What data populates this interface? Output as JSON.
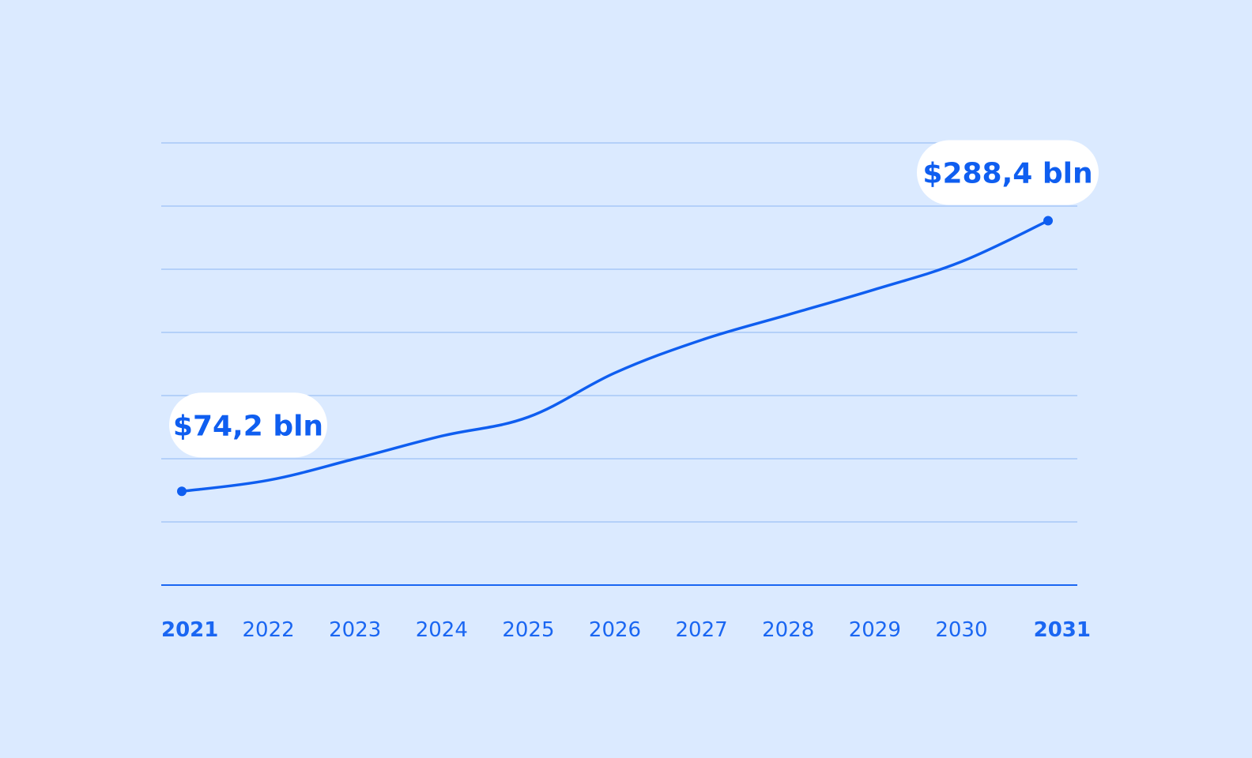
{
  "colors": {
    "background": "#dbeaff",
    "line": "#0f5ef0",
    "grid": "#a8c8f7",
    "axis": "#1a66f2",
    "callout_bg": "#ffffff"
  },
  "chart_data": {
    "type": "line",
    "title": "",
    "xlabel": "",
    "ylabel": "",
    "grid": true,
    "legend": "none",
    "categories": [
      "2021",
      "2022",
      "2023",
      "2024",
      "2025",
      "2026",
      "2027",
      "2028",
      "2029",
      "2030",
      "2031"
    ],
    "bold_ticks": [
      "2021",
      "2031"
    ],
    "ylim": [
      0,
      350
    ],
    "series": [
      {
        "values": [
          74.2,
          83,
          100,
          118,
          133,
          168,
          194,
          214,
          234,
          256,
          288.4
        ]
      }
    ],
    "annotations": [
      {
        "category": "2021",
        "value": 74.2,
        "text": "$74,2 bln"
      },
      {
        "category": "2031",
        "value": 288.4,
        "text": "$288,4 bln"
      }
    ]
  }
}
